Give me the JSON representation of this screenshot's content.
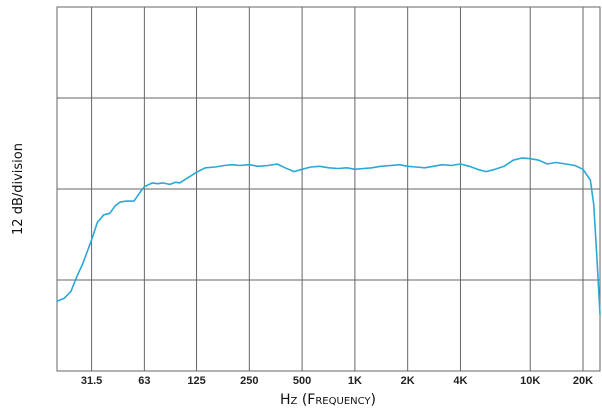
{
  "chart_data": {
    "type": "line",
    "xlabel_parts": [
      "H",
      "Z",
      " (F",
      "REQUENCY",
      ")"
    ],
    "ylabel": "12 dB/division",
    "x_scale": "log",
    "xlim": [
      20,
      25000
    ],
    "ylim": [
      -24,
      24
    ],
    "y_division_db": 12,
    "grid": true,
    "tick_labels": [
      "31.5",
      "63",
      "125",
      "250",
      "500",
      "1K",
      "2K",
      "4K",
      "10K",
      "20K"
    ],
    "tick_values": [
      31.5,
      63,
      125,
      250,
      500,
      1000,
      2000,
      4000,
      10000,
      20000
    ],
    "series": [
      {
        "color": "#2aa8d8",
        "points": [
          [
            20,
            -14.8
          ],
          [
            22,
            -14.4
          ],
          [
            24,
            -13.5
          ],
          [
            26,
            -11.5
          ],
          [
            28,
            -9.9
          ],
          [
            31.5,
            -6.7
          ],
          [
            34,
            -4.4
          ],
          [
            37,
            -3.4
          ],
          [
            40,
            -3.2
          ],
          [
            43,
            -2.2
          ],
          [
            46,
            -1.7
          ],
          [
            50,
            -1.6
          ],
          [
            55,
            -1.6
          ],
          [
            60,
            -0.3
          ],
          [
            63,
            0.3
          ],
          [
            70,
            0.8
          ],
          [
            75,
            0.7
          ],
          [
            80,
            0.8
          ],
          [
            88,
            0.6
          ],
          [
            95,
            0.9
          ],
          [
            100,
            0.8
          ],
          [
            110,
            1.4
          ],
          [
            125,
            2.2
          ],
          [
            140,
            2.8
          ],
          [
            160,
            2.9
          ],
          [
            180,
            3.1
          ],
          [
            200,
            3.2
          ],
          [
            220,
            3.1
          ],
          [
            250,
            3.2
          ],
          [
            280,
            3.0
          ],
          [
            320,
            3.1
          ],
          [
            360,
            3.3
          ],
          [
            400,
            2.8
          ],
          [
            450,
            2.3
          ],
          [
            500,
            2.6
          ],
          [
            560,
            2.9
          ],
          [
            630,
            3.0
          ],
          [
            710,
            2.8
          ],
          [
            800,
            2.7
          ],
          [
            900,
            2.8
          ],
          [
            1000,
            2.6
          ],
          [
            1120,
            2.7
          ],
          [
            1250,
            2.8
          ],
          [
            1400,
            3.0
          ],
          [
            1600,
            3.1
          ],
          [
            1800,
            3.2
          ],
          [
            2000,
            3.0
          ],
          [
            2240,
            2.9
          ],
          [
            2500,
            2.8
          ],
          [
            2800,
            3.0
          ],
          [
            3150,
            3.2
          ],
          [
            3550,
            3.1
          ],
          [
            4000,
            3.3
          ],
          [
            4500,
            3.0
          ],
          [
            5000,
            2.6
          ],
          [
            5600,
            2.3
          ],
          [
            6300,
            2.6
          ],
          [
            7100,
            3.0
          ],
          [
            8000,
            3.8
          ],
          [
            9000,
            4.1
          ],
          [
            10000,
            4.0
          ],
          [
            11200,
            3.8
          ],
          [
            12500,
            3.3
          ],
          [
            14000,
            3.5
          ],
          [
            16000,
            3.3
          ],
          [
            18000,
            3.1
          ],
          [
            20000,
            2.6
          ],
          [
            22000,
            1.2
          ],
          [
            23000,
            -2.0
          ],
          [
            24000,
            -9.0
          ],
          [
            25000,
            -16.5
          ]
        ]
      }
    ]
  }
}
